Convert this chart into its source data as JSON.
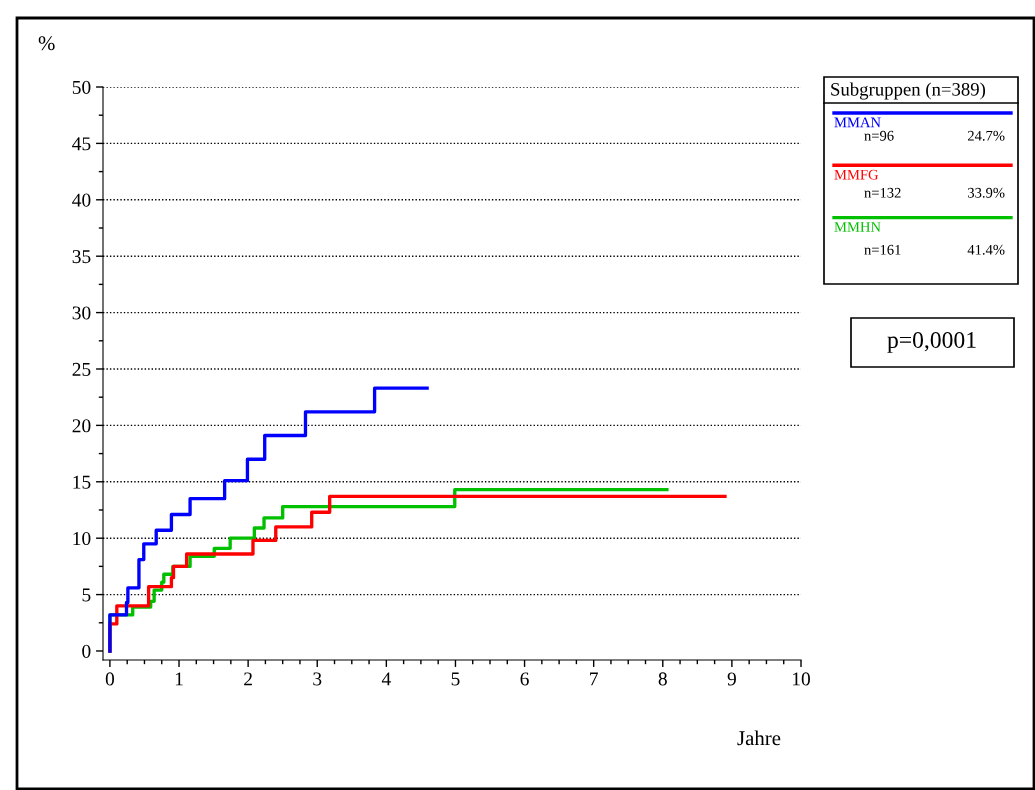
{
  "chart_data": {
    "type": "step",
    "xlabel": "Jahre",
    "ylabel": "%",
    "legend_title": "Subgruppen (n=389)",
    "xlim": [
      -0.1,
      10
    ],
    "ylim": [
      -0.8,
      50
    ],
    "xticks": [
      0,
      1,
      2,
      3,
      4,
      5,
      6,
      7,
      8,
      9,
      10
    ],
    "yticks": [
      0,
      5,
      10,
      15,
      20,
      25,
      30,
      35,
      40,
      45,
      50
    ],
    "grid": "y",
    "legend": "top right",
    "line_style": "solid",
    "marker": "none",
    "series": [
      {
        "name": "MMAN",
        "color": "#0000ff",
        "x": [
          0,
          0,
          0.24,
          0.26,
          0.42,
          0.49,
          0.67,
          0.89,
          1.16,
          1.66,
          1.99,
          2.24,
          2.83,
          3.83,
          4.59
        ],
        "values": [
          0,
          3.2,
          4.3,
          5.6,
          8.1,
          9.5,
          10.7,
          12.1,
          13.5,
          15.1,
          17.0,
          19.1,
          21.2,
          23.3,
          23.3
        ]
      },
      {
        "name": "MMFG",
        "color": "#ff0000",
        "x": [
          0,
          0,
          0.1,
          0.56,
          0.89,
          0.92,
          1.11,
          2.07,
          2.4,
          2.92,
          3.18,
          8.9
        ],
        "values": [
          0,
          2.4,
          4.0,
          5.7,
          6.5,
          7.5,
          8.6,
          9.8,
          11.0,
          12.3,
          13.7,
          13.7
        ]
      },
      {
        "name": "MMHN",
        "color": "#00c000",
        "x": [
          0,
          0,
          0.33,
          0.59,
          0.64,
          0.75,
          0.78,
          0.91,
          1.16,
          1.51,
          1.74,
          2.09,
          2.23,
          2.5,
          4.99,
          8.06
        ],
        "values": [
          0,
          3.2,
          3.9,
          4.4,
          5.4,
          6.1,
          6.8,
          7.5,
          8.4,
          9.1,
          10.0,
          10.9,
          11.8,
          12.8,
          14.3,
          14.3
        ]
      }
    ],
    "annotations": [
      "p=0,0001",
      "n=96",
      "24.7%",
      "n=132",
      "33.9%",
      "n=161",
      "41.4%"
    ]
  }
}
